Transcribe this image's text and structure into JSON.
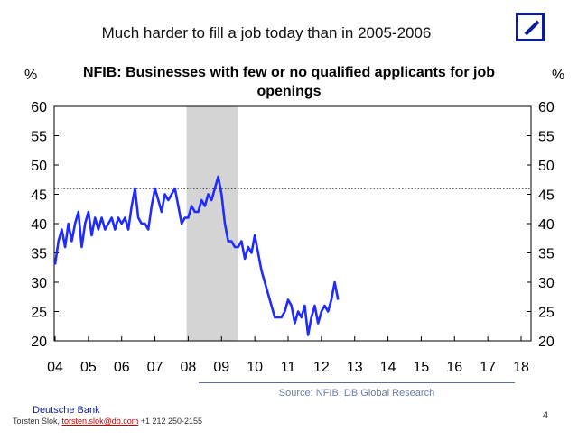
{
  "slide": {
    "title": "Much harder to fill a job today than in 2005-2006",
    "source": "Source: NFIB, DB Global Research",
    "brand": "Deutsche Bank",
    "contact_name": "Torsten Slok,",
    "contact_email": "torsten.slok@db.com",
    "contact_phone": "+1 212 250-2155",
    "page_number": "4",
    "logo": "deutsche-bank-logo-icon"
  },
  "chart_data": {
    "type": "line",
    "title_line1": "NFIB: Businesses with few or no qualified applicants for job",
    "title_line2": "openings",
    "ylabel_left": "%",
    "ylabel_right": "%",
    "ylim": [
      20,
      60
    ],
    "yticks": [
      "20",
      "25",
      "30",
      "35",
      "40",
      "45",
      "50",
      "55",
      "60"
    ],
    "xlim": [
      2004.0,
      2019.0
    ],
    "xticks": [
      {
        "x": 2004,
        "label": "04"
      },
      {
        "x": 2005,
        "label": "05"
      },
      {
        "x": 2006,
        "label": "06"
      },
      {
        "x": 2007,
        "label": "07"
      },
      {
        "x": 2008,
        "label": "08"
      },
      {
        "x": 2009,
        "label": "09"
      },
      {
        "x": 2010,
        "label": "10"
      },
      {
        "x": 2011,
        "label": "11"
      },
      {
        "x": 2012,
        "label": "12"
      },
      {
        "x": 2013,
        "label": "13"
      },
      {
        "x": 2014,
        "label": "14"
      },
      {
        "x": 2015,
        "label": "15"
      },
      {
        "x": 2016,
        "label": "16"
      },
      {
        "x": 2017,
        "label": "17"
      },
      {
        "x": 2018,
        "label": "18"
      }
    ],
    "recession": {
      "x0": 2007.95,
      "x1": 2009.5
    },
    "reference_line": {
      "y": 46,
      "style": "dotted"
    },
    "colors": {
      "line": "#1f2bff",
      "recession": "#d4d4d4",
      "reference": "#000000"
    },
    "series": [
      {
        "points": [
          [
            2004.0,
            33
          ],
          [
            2004.1,
            37
          ],
          [
            2004.2,
            39
          ],
          [
            2004.3,
            36
          ],
          [
            2004.4,
            40
          ],
          [
            2004.5,
            37
          ],
          [
            2004.6,
            40
          ],
          [
            2004.7,
            42
          ],
          [
            2004.8,
            36
          ],
          [
            2004.9,
            40
          ],
          [
            2005.0,
            42
          ],
          [
            2005.1,
            38
          ],
          [
            2005.2,
            41
          ],
          [
            2005.3,
            39
          ],
          [
            2005.4,
            41
          ],
          [
            2005.5,
            39
          ],
          [
            2005.6,
            40
          ],
          [
            2005.7,
            41
          ],
          [
            2005.8,
            39
          ],
          [
            2005.9,
            41
          ],
          [
            2006.0,
            40
          ],
          [
            2006.1,
            41
          ],
          [
            2006.2,
            39
          ],
          [
            2006.3,
            43
          ],
          [
            2006.4,
            46
          ],
          [
            2006.5,
            41
          ],
          [
            2006.6,
            40
          ],
          [
            2006.7,
            40
          ],
          [
            2006.8,
            39
          ],
          [
            2006.9,
            43
          ],
          [
            2007.0,
            46
          ],
          [
            2007.1,
            44
          ],
          [
            2007.2,
            42
          ],
          [
            2007.3,
            45
          ],
          [
            2007.4,
            44
          ],
          [
            2007.5,
            45
          ],
          [
            2007.6,
            46
          ],
          [
            2007.7,
            43
          ],
          [
            2007.8,
            40
          ],
          [
            2007.9,
            41
          ],
          [
            2008.0,
            41
          ],
          [
            2008.1,
            43
          ],
          [
            2008.2,
            42
          ],
          [
            2008.3,
            42
          ],
          [
            2008.4,
            44
          ],
          [
            2008.5,
            43
          ],
          [
            2008.6,
            45
          ],
          [
            2008.7,
            44
          ],
          [
            2008.8,
            46
          ],
          [
            2008.9,
            48
          ],
          [
            2009.0,
            45
          ],
          [
            2009.1,
            40
          ],
          [
            2009.2,
            37
          ],
          [
            2009.3,
            37
          ],
          [
            2009.4,
            36
          ],
          [
            2009.5,
            36
          ],
          [
            2009.6,
            37
          ],
          [
            2009.7,
            34
          ],
          [
            2009.8,
            36
          ],
          [
            2009.9,
            35
          ],
          [
            2010.0,
            38
          ],
          [
            2010.1,
            35
          ],
          [
            2010.2,
            32
          ],
          [
            2010.3,
            30
          ],
          [
            2010.4,
            28
          ],
          [
            2010.5,
            26
          ],
          [
            2010.6,
            24
          ],
          [
            2010.7,
            24
          ],
          [
            2010.8,
            24
          ],
          [
            2010.9,
            25
          ],
          [
            2011.0,
            27
          ],
          [
            2011.1,
            26
          ],
          [
            2011.2,
            23
          ],
          [
            2011.3,
            25
          ],
          [
            2011.4,
            24
          ],
          [
            2011.5,
            26
          ],
          [
            2011.6,
            21
          ],
          [
            2011.7,
            24
          ],
          [
            2011.8,
            26
          ],
          [
            2011.9,
            23
          ],
          [
            2012.0,
            25
          ],
          [
            2012.1,
            26
          ],
          [
            2012.2,
            25
          ],
          [
            2012.3,
            27
          ],
          [
            2012.4,
            30
          ],
          [
            2012.5,
            27
          ]
        ]
      }
    ]
  }
}
